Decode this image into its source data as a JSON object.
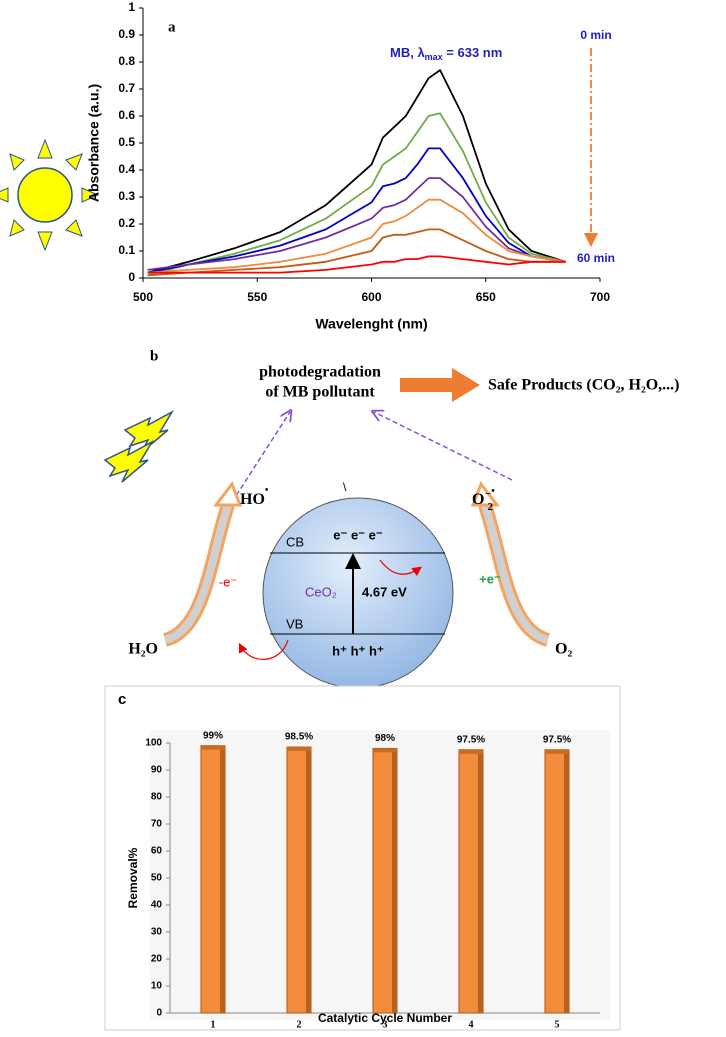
{
  "chart_data": [
    {
      "type": "line",
      "panel_label": "a",
      "x_label": "Wavelenght (nm)",
      "y_label": "Absorbance (a.u.)",
      "peak_label": [
        "MB, λ",
        "max",
        " = 633 nm"
      ],
      "time_start": "0 min",
      "time_end": "60 min",
      "x": [
        502,
        520,
        540,
        560,
        580,
        600,
        605,
        610,
        615,
        620,
        625,
        630,
        640,
        650,
        660,
        670,
        685
      ],
      "series": [
        {
          "color": "#000000",
          "values": [
            0.02,
            0.06,
            0.11,
            0.17,
            0.27,
            0.42,
            0.52,
            0.56,
            0.6,
            0.67,
            0.74,
            0.77,
            0.6,
            0.35,
            0.18,
            0.1,
            0.06
          ]
        },
        {
          "color": "#70ad47",
          "values": [
            0.01,
            0.05,
            0.09,
            0.14,
            0.22,
            0.34,
            0.42,
            0.45,
            0.48,
            0.54,
            0.6,
            0.61,
            0.47,
            0.28,
            0.15,
            0.09,
            0.06
          ]
        },
        {
          "color": "#0000cc",
          "values": [
            0.02,
            0.05,
            0.08,
            0.12,
            0.18,
            0.28,
            0.34,
            0.35,
            0.37,
            0.42,
            0.48,
            0.48,
            0.37,
            0.23,
            0.13,
            0.08,
            0.06
          ]
        },
        {
          "color": "#7030a0",
          "values": [
            0.03,
            0.05,
            0.07,
            0.1,
            0.15,
            0.22,
            0.26,
            0.27,
            0.29,
            0.33,
            0.37,
            0.37,
            0.3,
            0.19,
            0.11,
            0.08,
            0.06
          ]
        },
        {
          "color": "#f08a3c",
          "values": [
            0.02,
            0.03,
            0.04,
            0.06,
            0.09,
            0.15,
            0.2,
            0.21,
            0.23,
            0.26,
            0.29,
            0.29,
            0.24,
            0.16,
            0.1,
            0.08,
            0.06
          ]
        },
        {
          "color": "#c55a11",
          "values": [
            0.01,
            0.02,
            0.03,
            0.04,
            0.06,
            0.1,
            0.15,
            0.16,
            0.16,
            0.17,
            0.18,
            0.18,
            0.14,
            0.1,
            0.07,
            0.06,
            0.06
          ]
        },
        {
          "color": "#ff0000",
          "values": [
            0.02,
            0.02,
            0.02,
            0.02,
            0.03,
            0.05,
            0.06,
            0.06,
            0.07,
            0.07,
            0.08,
            0.08,
            0.07,
            0.06,
            0.05,
            0.06,
            0.06
          ]
        }
      ],
      "xlim": [
        500,
        700
      ],
      "xticks": [
        500,
        550,
        600,
        650,
        700
      ],
      "ylim": [
        0,
        1
      ],
      "yticks": [
        0,
        0.1,
        0.2,
        0.3,
        0.4,
        0.5,
        0.6,
        0.7,
        0.8,
        0.9,
        1
      ],
      "grid": false
    },
    {
      "type": "bar",
      "panel_label": "c",
      "x_label": "Catalytic Cycle Number",
      "y_label": "Removal%",
      "categories": [
        "1",
        "2",
        "3",
        "4",
        "5"
      ],
      "values": [
        99,
        98.5,
        98,
        97.5,
        97.5
      ],
      "value_labels": [
        "99%",
        "98.5%",
        "98%",
        "97.5%",
        "97.5%"
      ],
      "color": "#f28c3a",
      "ylim": [
        0,
        100
      ],
      "yticks": [
        0,
        10,
        20,
        30,
        40,
        50,
        60,
        70,
        80,
        90,
        100
      ],
      "grid": false
    }
  ],
  "diagram": {
    "label": "b",
    "target": [
      "photodegradation",
      "of MB pollutant"
    ],
    "products": "Safe Products (CO₂, H₂O,...)",
    "hydroxyl": {
      "base": "HO",
      "radical": "•"
    },
    "superoxide": {
      "base": "O",
      "sub": "2",
      "sup": "−",
      "radical": "•"
    },
    "water": "H₂O",
    "oxygen": "O₂",
    "band": {
      "cb": "CB",
      "vb": "VB",
      "material": "CeO₂",
      "gap": "4.67 eV",
      "electrons": "e⁻ e⁻ e⁻",
      "holes": "h⁺ h⁺ h⁺"
    },
    "oxidation": "-e⁻",
    "reduction": "+e⁻",
    "stray": "\\"
  }
}
